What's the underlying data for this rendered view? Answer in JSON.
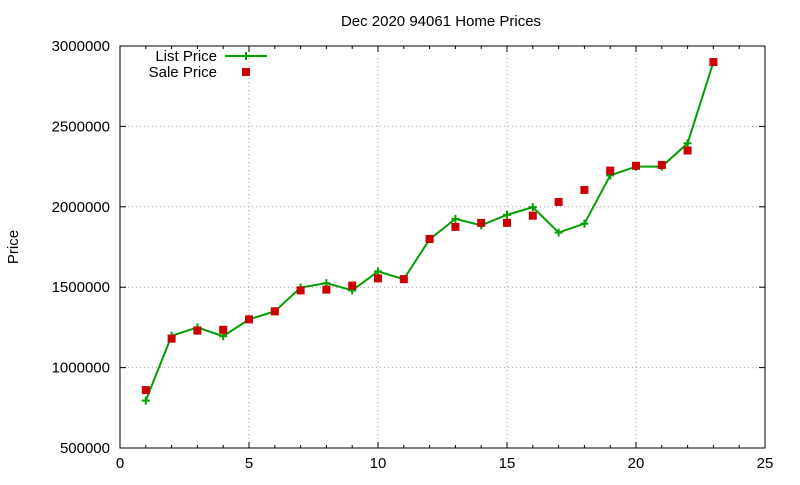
{
  "chart_data": {
    "type": "line",
    "title": "Dec 2020 94061 Home Prices",
    "xlabel": "",
    "ylabel": "Price",
    "xlim": [
      0,
      25
    ],
    "ylim": [
      500000,
      3000000
    ],
    "xticks": [
      "0",
      "5",
      "10",
      "15",
      "20",
      "25"
    ],
    "yticks": [
      "500000",
      "1000000",
      "1500000",
      "2000000",
      "2500000",
      "3000000"
    ],
    "grid": true,
    "legend_position": "top-left",
    "colors": {
      "list_price": "#00a000",
      "sale_price": "#cc0000",
      "grid": "#a0a0a0",
      "axis": "#000000"
    },
    "series": [
      {
        "name": "List Price",
        "style": "line-with-plus-markers",
        "x": [
          1,
          2,
          3,
          4,
          5,
          6,
          7,
          8,
          9,
          10,
          11,
          12,
          13,
          14,
          15,
          16,
          17,
          18,
          19,
          20,
          21,
          22,
          23
        ],
        "y": [
          795000,
          1198000,
          1250000,
          1195000,
          1300000,
          1350000,
          1498000,
          1525000,
          1480000,
          1598000,
          1550000,
          1798000,
          1925000,
          1885000,
          1950000,
          1998000,
          1840000,
          1895000,
          2195000,
          2250000,
          2250000,
          2395000,
          2900000
        ]
      },
      {
        "name": "Sale Price",
        "style": "square-markers",
        "x": [
          1,
          2,
          3,
          4,
          5,
          6,
          7,
          8,
          9,
          10,
          11,
          12,
          13,
          14,
          15,
          16,
          17,
          18,
          19,
          20,
          21,
          22,
          23
        ],
        "y": [
          860000,
          1180000,
          1230000,
          1235000,
          1300000,
          1350000,
          1480000,
          1485000,
          1510000,
          1555000,
          1550000,
          1800000,
          1875000,
          1900000,
          1900000,
          1945000,
          2030000,
          2105000,
          2225000,
          2255000,
          2260000,
          2350000,
          2900000
        ]
      }
    ]
  }
}
